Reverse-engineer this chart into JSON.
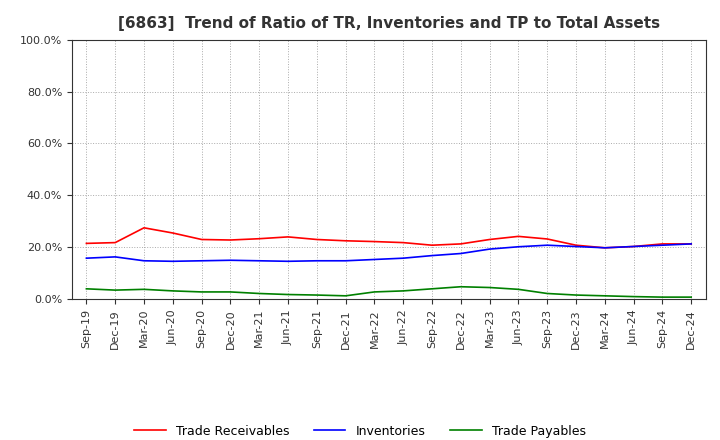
{
  "title": "[6863]  Trend of Ratio of TR, Inventories and TP to Total Assets",
  "x_labels": [
    "Sep-19",
    "Dec-19",
    "Mar-20",
    "Jun-20",
    "Sep-20",
    "Dec-20",
    "Mar-21",
    "Jun-21",
    "Sep-21",
    "Dec-21",
    "Mar-22",
    "Jun-22",
    "Sep-22",
    "Dec-22",
    "Mar-23",
    "Jun-23",
    "Sep-23",
    "Dec-23",
    "Mar-24",
    "Jun-24",
    "Sep-24",
    "Dec-24"
  ],
  "trade_receivables": [
    0.215,
    0.218,
    0.275,
    0.255,
    0.23,
    0.228,
    0.233,
    0.24,
    0.23,
    0.225,
    0.222,
    0.218,
    0.208,
    0.213,
    0.23,
    0.242,
    0.232,
    0.208,
    0.198,
    0.203,
    0.213,
    0.213
  ],
  "inventories": [
    0.158,
    0.163,
    0.148,
    0.146,
    0.148,
    0.15,
    0.148,
    0.146,
    0.148,
    0.148,
    0.153,
    0.158,
    0.168,
    0.176,
    0.193,
    0.202,
    0.208,
    0.203,
    0.198,
    0.203,
    0.208,
    0.213
  ],
  "trade_payables": [
    0.04,
    0.035,
    0.038,
    0.032,
    0.028,
    0.028,
    0.022,
    0.018,
    0.016,
    0.013,
    0.028,
    0.032,
    0.04,
    0.048,
    0.045,
    0.038,
    0.022,
    0.016,
    0.013,
    0.01,
    0.008,
    0.008
  ],
  "tr_color": "#ff0000",
  "inv_color": "#0000ff",
  "tp_color": "#008000",
  "ylim_min": 0.0,
  "ylim_max": 1.0,
  "yticks": [
    0.0,
    0.2,
    0.4,
    0.6,
    0.8,
    1.0
  ],
  "background_color": "#ffffff",
  "grid_color": "#aaaaaa",
  "title_fontsize": 11,
  "tick_fontsize": 8,
  "legend_fontsize": 9
}
